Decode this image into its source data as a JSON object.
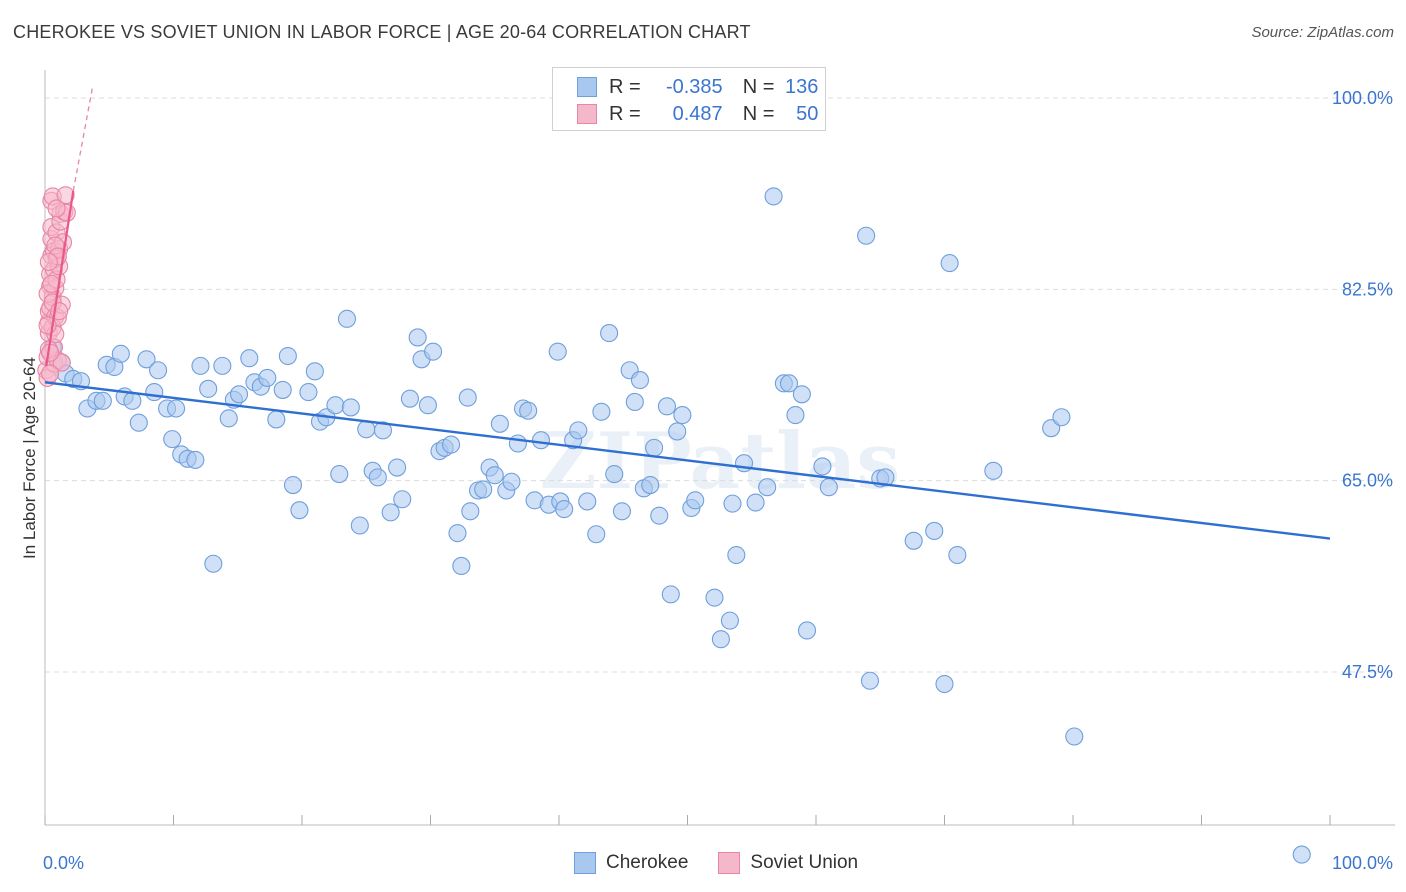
{
  "title": "CHEROKEE VS SOVIET UNION IN LABOR FORCE | AGE 20-64 CORRELATION CHART",
  "source": "Source: ZipAtlas.com",
  "legend": {
    "rows": [
      {
        "r_label": "R =",
        "r_value": "-0.385",
        "n_label": "N =",
        "n_value": "136"
      },
      {
        "r_label": "R =",
        "r_value": "0.487",
        "n_label": "N =",
        "n_value": "50"
      }
    ]
  },
  "colors": {
    "blue_fill": "#a9c8f0",
    "blue_stroke": "#6f9fdc",
    "blue_line": "#2f6fcf",
    "pink_fill": "#f5b8cb",
    "pink_stroke": "#e985a5",
    "pink_line": "#e8588a",
    "tick_text": "#3b75d0",
    "grid": "#dcdcdc"
  },
  "chart_data": {
    "type": "scatter",
    "title": "CHEROKEE VS SOVIET UNION IN LABOR FORCE | AGE 20-64 CORRELATION CHART",
    "xlabel": "",
    "ylabel": "In Labor Force | Age 20-64",
    "xlim": [
      0,
      100
    ],
    "ylim": [
      29.5,
      101.5
    ],
    "x_tick_labels": [
      "0.0%",
      "100.0%"
    ],
    "y_ticks": [
      47.5,
      65.0,
      82.5,
      100.0
    ],
    "y_tick_labels": [
      "47.5%",
      "65.0%",
      "82.5%",
      "100.0%"
    ],
    "grid": "horizontal dashed",
    "legend_position": "top-center",
    "series": [
      {
        "name": "Cherokee",
        "color": "#a9c8f0",
        "points": [
          [
            0.6,
            77.2
          ],
          [
            1.3,
            75.8
          ],
          [
            1.6,
            74.8
          ],
          [
            2.2,
            74.3
          ],
          [
            2.8,
            74.1
          ],
          [
            3.3,
            71.6
          ],
          [
            4.0,
            72.3
          ],
          [
            4.5,
            72.3
          ],
          [
            4.8,
            75.6
          ],
          [
            5.4,
            75.4
          ],
          [
            5.9,
            76.6
          ],
          [
            6.2,
            72.7
          ],
          [
            6.8,
            72.3
          ],
          [
            7.3,
            70.3
          ],
          [
            7.9,
            76.1
          ],
          [
            8.5,
            73.1
          ],
          [
            8.8,
            75.1
          ],
          [
            9.5,
            71.6
          ],
          [
            9.9,
            68.8
          ],
          [
            10.2,
            71.6
          ],
          [
            10.6,
            67.4
          ],
          [
            11.1,
            67.0
          ],
          [
            11.7,
            66.9
          ],
          [
            12.1,
            75.5
          ],
          [
            12.7,
            73.4
          ],
          [
            13.1,
            57.4
          ],
          [
            13.8,
            75.5
          ],
          [
            14.3,
            70.7
          ],
          [
            14.7,
            72.4
          ],
          [
            15.1,
            72.9
          ],
          [
            15.9,
            76.2
          ],
          [
            16.3,
            74.0
          ],
          [
            16.8,
            73.6
          ],
          [
            17.3,
            74.4
          ],
          [
            18.0,
            70.6
          ],
          [
            18.5,
            73.3
          ],
          [
            18.9,
            76.4
          ],
          [
            19.3,
            64.6
          ],
          [
            19.8,
            62.3
          ],
          [
            20.5,
            73.1
          ],
          [
            21.0,
            75.0
          ],
          [
            21.4,
            70.4
          ],
          [
            21.9,
            70.8
          ],
          [
            22.6,
            71.9
          ],
          [
            22.9,
            65.6
          ],
          [
            23.5,
            79.8
          ],
          [
            23.8,
            71.7
          ],
          [
            24.5,
            60.9
          ],
          [
            25.0,
            69.7
          ],
          [
            25.5,
            65.9
          ],
          [
            25.9,
            65.3
          ],
          [
            26.3,
            69.6
          ],
          [
            26.9,
            62.1
          ],
          [
            27.4,
            66.2
          ],
          [
            27.8,
            63.3
          ],
          [
            28.4,
            72.5
          ],
          [
            29.0,
            78.1
          ],
          [
            29.3,
            76.1
          ],
          [
            29.8,
            71.9
          ],
          [
            30.2,
            76.8
          ],
          [
            30.7,
            67.7
          ],
          [
            31.1,
            68.0
          ],
          [
            31.6,
            68.3
          ],
          [
            32.1,
            60.2
          ],
          [
            32.4,
            57.2
          ],
          [
            32.9,
            72.6
          ],
          [
            33.1,
            62.2
          ],
          [
            33.7,
            64.1
          ],
          [
            34.1,
            64.2
          ],
          [
            34.6,
            66.2
          ],
          [
            35.0,
            65.5
          ],
          [
            35.4,
            70.2
          ],
          [
            35.9,
            64.1
          ],
          [
            36.3,
            64.9
          ],
          [
            36.8,
            68.4
          ],
          [
            37.2,
            71.6
          ],
          [
            37.6,
            71.4
          ],
          [
            38.1,
            63.2
          ],
          [
            38.6,
            68.7
          ],
          [
            39.2,
            62.8
          ],
          [
            39.9,
            76.8
          ],
          [
            40.1,
            63.1
          ],
          [
            40.4,
            62.4
          ],
          [
            41.1,
            68.7
          ],
          [
            41.5,
            69.6
          ],
          [
            42.2,
            63.1
          ],
          [
            42.9,
            60.1
          ],
          [
            43.3,
            71.3
          ],
          [
            43.9,
            78.5
          ],
          [
            44.3,
            65.6
          ],
          [
            44.9,
            62.2
          ],
          [
            45.5,
            75.1
          ],
          [
            45.9,
            72.2
          ],
          [
            46.3,
            74.2
          ],
          [
            46.6,
            64.3
          ],
          [
            47.1,
            64.6
          ],
          [
            47.4,
            68.0
          ],
          [
            47.8,
            61.8
          ],
          [
            48.4,
            71.8
          ],
          [
            48.7,
            54.6
          ],
          [
            49.2,
            69.5
          ],
          [
            49.6,
            71.0
          ],
          [
            50.3,
            62.5
          ],
          [
            50.6,
            63.2
          ],
          [
            52.1,
            54.3
          ],
          [
            52.6,
            50.5
          ],
          [
            53.5,
            62.9
          ],
          [
            53.3,
            52.2
          ],
          [
            53.8,
            58.2
          ],
          [
            54.4,
            66.6
          ],
          [
            55.3,
            63.0
          ],
          [
            56.2,
            64.4
          ],
          [
            56.7,
            91.0
          ],
          [
            57.5,
            73.9
          ],
          [
            57.9,
            73.9
          ],
          [
            58.4,
            71.0
          ],
          [
            58.9,
            72.9
          ],
          [
            59.3,
            51.3
          ],
          [
            60.5,
            66.3
          ],
          [
            61.0,
            64.4
          ],
          [
            63.9,
            87.4
          ],
          [
            64.2,
            46.7
          ],
          [
            65.0,
            65.2
          ],
          [
            65.4,
            65.3
          ],
          [
            67.6,
            59.5
          ],
          [
            69.2,
            60.4
          ],
          [
            70.0,
            46.4
          ],
          [
            70.4,
            84.9
          ],
          [
            71.0,
            58.2
          ],
          [
            73.8,
            65.9
          ],
          [
            78.3,
            69.8
          ],
          [
            79.1,
            70.8
          ],
          [
            80.1,
            41.6
          ],
          [
            97.8,
            30.8
          ]
        ]
      },
      {
        "name": "Soviet Union",
        "color": "#f5b8cb",
        "points": [
          [
            0.1,
            75.1
          ],
          [
            0.2,
            74.4
          ],
          [
            0.2,
            76.3
          ],
          [
            0.3,
            78.5
          ],
          [
            0.3,
            79.5
          ],
          [
            0.3,
            80.5
          ],
          [
            0.4,
            80.8
          ],
          [
            0.4,
            82.8
          ],
          [
            0.4,
            83.9
          ],
          [
            0.5,
            85.6
          ],
          [
            0.5,
            87.1
          ],
          [
            0.5,
            88.2
          ],
          [
            0.5,
            90.6
          ],
          [
            0.6,
            91.0
          ],
          [
            0.6,
            79.0
          ],
          [
            0.6,
            81.8
          ],
          [
            0.7,
            84.3
          ],
          [
            0.7,
            86.0
          ],
          [
            0.7,
            77.2
          ],
          [
            0.7,
            75.7
          ],
          [
            0.8,
            82.6
          ],
          [
            0.8,
            80.0
          ],
          [
            0.8,
            78.4
          ],
          [
            0.9,
            85.3
          ],
          [
            0.9,
            83.4
          ],
          [
            0.9,
            87.7
          ],
          [
            1.0,
            76.0
          ],
          [
            1.0,
            79.9
          ],
          [
            1.1,
            84.6
          ],
          [
            1.1,
            86.2
          ],
          [
            1.2,
            89.4
          ],
          [
            1.2,
            88.7
          ],
          [
            1.3,
            75.8
          ],
          [
            1.3,
            81.1
          ],
          [
            1.4,
            86.8
          ],
          [
            1.5,
            89.6
          ],
          [
            1.6,
            91.1
          ],
          [
            1.7,
            89.5
          ],
          [
            0.2,
            82.1
          ],
          [
            0.3,
            77.0
          ],
          [
            0.4,
            74.8
          ],
          [
            0.5,
            83.0
          ],
          [
            0.6,
            81.3
          ],
          [
            0.8,
            86.5
          ],
          [
            0.9,
            89.9
          ],
          [
            1.0,
            85.5
          ],
          [
            1.1,
            80.5
          ],
          [
            0.2,
            79.2
          ],
          [
            0.3,
            85.0
          ],
          [
            0.4,
            76.7
          ]
        ]
      }
    ],
    "trend_lines": [
      {
        "series": "Cherokee",
        "x": [
          0,
          100
        ],
        "y": [
          74.0,
          59.7
        ]
      },
      {
        "series": "Soviet Union",
        "x": [
          0.1,
          2.2
        ],
        "y": [
          75.5,
          91.5
        ],
        "dashed_extension": {
          "x": [
            2.2,
            3.7
          ],
          "y": [
            91.5,
            101.0
          ]
        }
      }
    ]
  },
  "bottom_legend": [
    "Cherokee",
    "Soviet Union"
  ],
  "watermark": "ZIPatlas"
}
